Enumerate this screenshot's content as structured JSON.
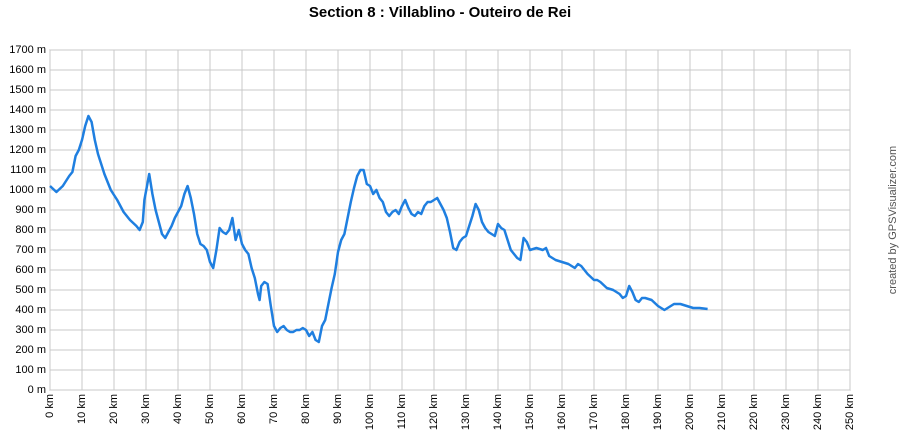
{
  "chart_data": {
    "type": "line",
    "title": "Section 8 : Villablino - Outeiro de Rei",
    "credit": "created by GPSVisualizer.com",
    "x": [
      0,
      2,
      4,
      6,
      7,
      8,
      9,
      10,
      11,
      12,
      13,
      14,
      15,
      17,
      19,
      21,
      23,
      25,
      27,
      28,
      29,
      29.5,
      31,
      32,
      33,
      34,
      35,
      36,
      37,
      38,
      39,
      40,
      41,
      42,
      43,
      44,
      45,
      46,
      47,
      48,
      49,
      50,
      51,
      52,
      53,
      54,
      55,
      56,
      57,
      58,
      59,
      60,
      61,
      62,
      63,
      64,
      65,
      65.5,
      66,
      67,
      68,
      69,
      70,
      71,
      72,
      73,
      74,
      75,
      76,
      77,
      78,
      79,
      80,
      81,
      82,
      83,
      84,
      85,
      86,
      87,
      88,
      89,
      90,
      91,
      92,
      93,
      94,
      95,
      96,
      97,
      98,
      99,
      100,
      101,
      102,
      103,
      104,
      105,
      106,
      107,
      108,
      109,
      110,
      111,
      112,
      113,
      114,
      115,
      116,
      117,
      118,
      119,
      120,
      121,
      122,
      123,
      124,
      125,
      126,
      127,
      128,
      129,
      130,
      131,
      132,
      133,
      134,
      135,
      136,
      137,
      138,
      139,
      140,
      141,
      142,
      143,
      144,
      145,
      146,
      147,
      148,
      149,
      150,
      152,
      154,
      155,
      156,
      158,
      160,
      162,
      164,
      165,
      166,
      168,
      170,
      171,
      172,
      174,
      176,
      178,
      179,
      180,
      181,
      182,
      183,
      184,
      185,
      186,
      188,
      190,
      191,
      192,
      193,
      194,
      195,
      197,
      199,
      201,
      203,
      205.5
    ],
    "series": [
      {
        "color": "#1f7fe0",
        "values": [
          1020,
          990,
          1020,
          1070,
          1090,
          1170,
          1200,
          1250,
          1320,
          1370,
          1340,
          1250,
          1180,
          1080,
          1000,
          950,
          890,
          850,
          820,
          800,
          840,
          950,
          1080,
          980,
          900,
          840,
          780,
          760,
          790,
          820,
          860,
          890,
          920,
          980,
          1020,
          960,
          880,
          780,
          730,
          720,
          700,
          640,
          610,
          700,
          810,
          790,
          780,
          800,
          860,
          750,
          800,
          730,
          700,
          680,
          610,
          560,
          480,
          450,
          520,
          540,
          530,
          420,
          320,
          290,
          310,
          320,
          300,
          290,
          290,
          300,
          300,
          310,
          300,
          270,
          290,
          250,
          240,
          320,
          350,
          430,
          510,
          580,
          690,
          750,
          780,
          860,
          940,
          1010,
          1070,
          1100,
          1100,
          1030,
          1020,
          980,
          1000,
          960,
          940,
          890,
          870,
          890,
          900,
          880,
          920,
          950,
          910,
          880,
          870,
          890,
          880,
          920,
          940,
          940,
          950,
          960,
          930,
          900,
          860,
          790,
          710,
          700,
          740,
          760,
          770,
          820,
          870,
          930,
          900,
          840,
          810,
          790,
          780,
          770,
          830,
          810,
          800,
          750,
          700,
          680,
          660,
          650,
          760,
          740,
          700,
          710,
          700,
          710,
          670,
          650,
          640,
          630,
          610,
          630,
          620,
          580,
          550,
          550,
          540,
          510,
          500,
          480,
          460,
          470,
          520,
          490,
          450,
          440,
          460,
          460,
          450,
          420,
          410,
          400,
          410,
          420,
          430,
          430,
          420,
          410,
          410,
          405
        ]
      }
    ],
    "xlim": [
      0,
      250
    ],
    "ylim": [
      0,
      1700
    ],
    "xticks": [
      {
        "value": 0,
        "label": "0 km"
      },
      {
        "value": 10,
        "label": "10 km"
      },
      {
        "value": 20,
        "label": "20 km"
      },
      {
        "value": 30,
        "label": "30 km"
      },
      {
        "value": 40,
        "label": "40 km"
      },
      {
        "value": 50,
        "label": "50 km"
      },
      {
        "value": 60,
        "label": "60 km"
      },
      {
        "value": 70,
        "label": "70 km"
      },
      {
        "value": 80,
        "label": "80 km"
      },
      {
        "value": 90,
        "label": "90 km"
      },
      {
        "value": 100,
        "label": "100 km"
      },
      {
        "value": 110,
        "label": "110 km"
      },
      {
        "value": 120,
        "label": "120 km"
      },
      {
        "value": 130,
        "label": "130 km"
      },
      {
        "value": 140,
        "label": "140 km"
      },
      {
        "value": 150,
        "label": "150 km"
      },
      {
        "value": 160,
        "label": "160 km"
      },
      {
        "value": 170,
        "label": "170 km"
      },
      {
        "value": 180,
        "label": "180 km"
      },
      {
        "value": 190,
        "label": "190 km"
      },
      {
        "value": 200,
        "label": "200 km"
      },
      {
        "value": 210,
        "label": "210 km"
      },
      {
        "value": 220,
        "label": "220 km"
      },
      {
        "value": 230,
        "label": "230 km"
      },
      {
        "value": 240,
        "label": "240 km"
      },
      {
        "value": 250,
        "label": "250 km"
      }
    ],
    "yticks": [
      {
        "value": 0,
        "label": "0 m"
      },
      {
        "value": 100,
        "label": "100 m"
      },
      {
        "value": 200,
        "label": "200 m"
      },
      {
        "value": 300,
        "label": "300 m"
      },
      {
        "value": 400,
        "label": "400 m"
      },
      {
        "value": 500,
        "label": "500 m"
      },
      {
        "value": 600,
        "label": "600 m"
      },
      {
        "value": 700,
        "label": "700 m"
      },
      {
        "value": 800,
        "label": "800 m"
      },
      {
        "value": 900,
        "label": "900 m"
      },
      {
        "value": 1000,
        "label": "1000 m"
      },
      {
        "value": 1100,
        "label": "1100 m"
      },
      {
        "value": 1200,
        "label": "1200 m"
      },
      {
        "value": 1300,
        "label": "1300 m"
      },
      {
        "value": 1400,
        "label": "1400 m"
      },
      {
        "value": 1500,
        "label": "1500 m"
      },
      {
        "value": 1600,
        "label": "1600 m"
      },
      {
        "value": 1700,
        "label": "1700 m"
      }
    ],
    "grid": true
  }
}
